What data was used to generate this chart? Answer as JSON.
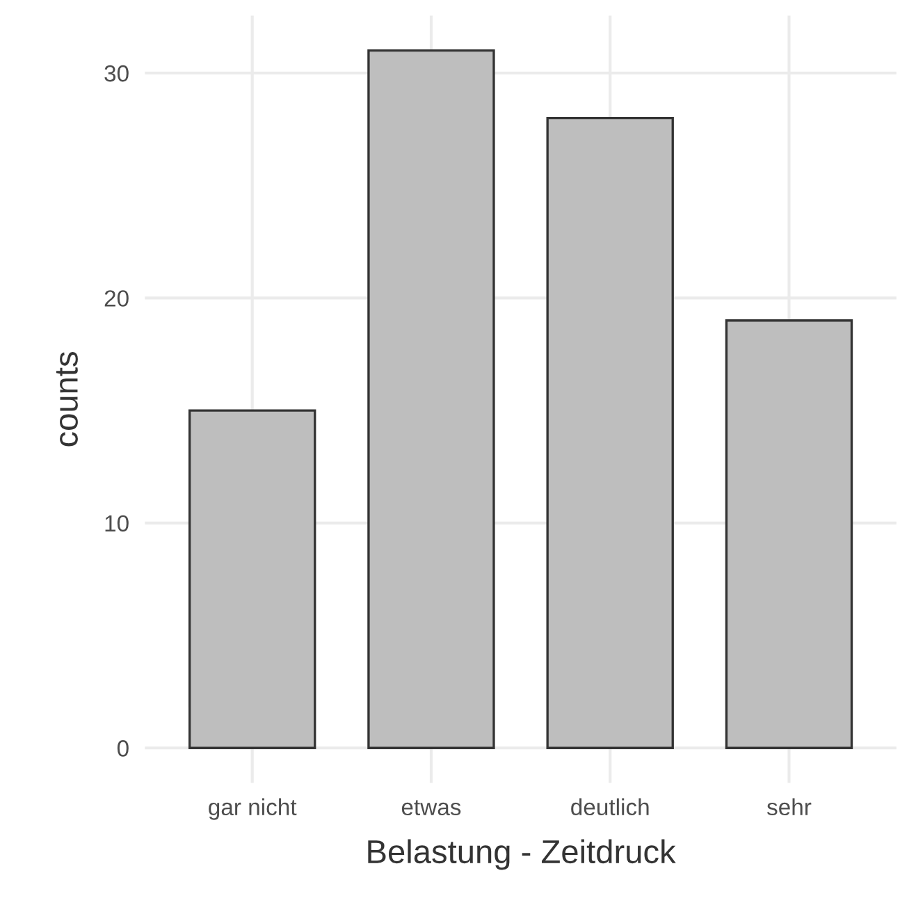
{
  "chart_data": {
    "type": "bar",
    "xlabel": "Belastung - Zeitdruck",
    "ylabel": "counts",
    "categories": [
      "gar nicht",
      "etwas",
      "deutlich",
      "sehr"
    ],
    "values": [
      15,
      31,
      28,
      19
    ],
    "color": "#bebebe",
    "ylim": [
      -1.55,
      32.55
    ],
    "yticks": [
      0,
      10,
      20,
      30
    ],
    "grid": true
  }
}
